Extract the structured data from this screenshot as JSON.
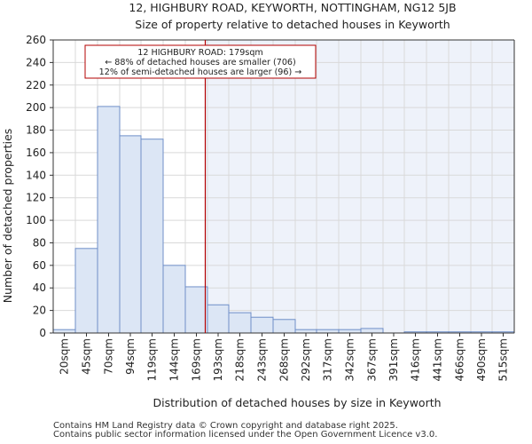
{
  "chart_data": {
    "type": "bar",
    "title": "12, HIGHBURY ROAD, KEYWORTH, NOTTINGHAM, NG12 5JB",
    "subtitle": "Size of property relative to detached houses in Keyworth",
    "xlabel": "Distribution of detached houses by size in Keyworth",
    "ylabel": "Number of detached properties",
    "ylim": [
      0,
      260
    ],
    "yticks": [
      0,
      20,
      40,
      60,
      80,
      100,
      120,
      140,
      160,
      180,
      200,
      220,
      240,
      260
    ],
    "bin_edges": [
      7.5,
      32.5,
      57.5,
      82.5,
      106.5,
      131.5,
      156.5,
      181.5,
      205.5,
      230.5,
      255.5,
      280.5,
      304.5,
      329.5,
      354.5,
      379.5,
      403.5,
      428.5,
      453.5,
      478.5,
      502.5,
      527.5
    ],
    "categories": [
      "20sqm",
      "45sqm",
      "70sqm",
      "94sqm",
      "119sqm",
      "144sqm",
      "169sqm",
      "193sqm",
      "218sqm",
      "243sqm",
      "268sqm",
      "292sqm",
      "317sqm",
      "342sqm",
      "367sqm",
      "391sqm",
      "416sqm",
      "441sqm",
      "466sqm",
      "490sqm",
      "515sqm"
    ],
    "values": [
      3,
      75,
      201,
      175,
      172,
      60,
      41,
      25,
      18,
      14,
      12,
      3,
      3,
      3,
      4,
      0,
      1,
      1,
      1,
      1,
      1
    ],
    "marker": {
      "value": 179,
      "label_lines": [
        "12 HIGHBURY ROAD: 179sqm",
        "← 88% of detached houses are smaller (706)",
        "12% of semi-detached houses are larger (96) →"
      ]
    },
    "colors": {
      "bar_fill": "#dce6f5",
      "bar_stroke": "#6f8fc8",
      "marker": "#b30000",
      "grid": "#d9d9d9",
      "highlight_bg": "#eef2fa"
    }
  },
  "footer": {
    "line1": "Contains HM Land Registry data © Crown copyright and database right 2025.",
    "line2": "Contains public sector information licensed under the Open Government Licence v3.0."
  }
}
